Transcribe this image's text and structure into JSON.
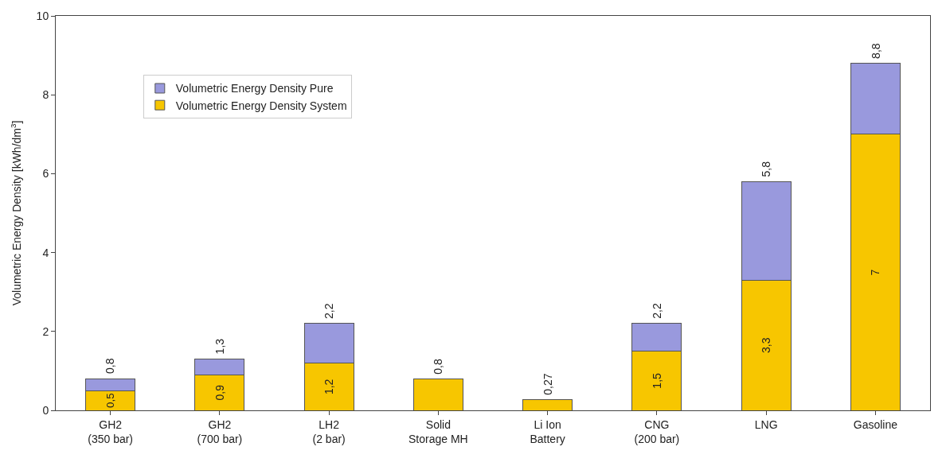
{
  "chart_data": {
    "type": "bar",
    "stacked": true,
    "ylabel": "Volumetric Energy Density [kWh/dm$^{3}$]",
    "categories": [
      "GH2\n(350 bar)",
      "GH2\n(700 bar)",
      "LH2\n(2 bar)",
      "Solid\nStorage MH",
      "Li Ion\nBattery",
      "CNG\n(200 bar)",
      "LNG",
      "Gasoline"
    ],
    "series": [
      {
        "name": "Volumetric Energy Density System",
        "color": "#f7c600",
        "values": [
          0.5,
          0.9,
          1.2,
          0.8,
          0.27,
          1.5,
          3.3,
          7
        ],
        "value_labels": [
          "0,5",
          "0,9",
          "1,2",
          null,
          null,
          "1,5",
          "3,3",
          "7"
        ]
      },
      {
        "name": "Volumetric Energy Density Pure",
        "color": "#9999dd",
        "values": [
          0.3,
          0.4,
          1.0,
          null,
          null,
          0.7,
          2.5,
          1.8
        ]
      }
    ],
    "totals": [
      "0,8",
      "1,3",
      "2,2",
      "0,8",
      "0,27",
      "2,2",
      "5,8",
      "8,8"
    ],
    "ylim": [
      0,
      10
    ],
    "yticks": [
      0,
      2,
      4,
      6,
      8,
      10
    ],
    "legend": "top left",
    "grid": false
  }
}
